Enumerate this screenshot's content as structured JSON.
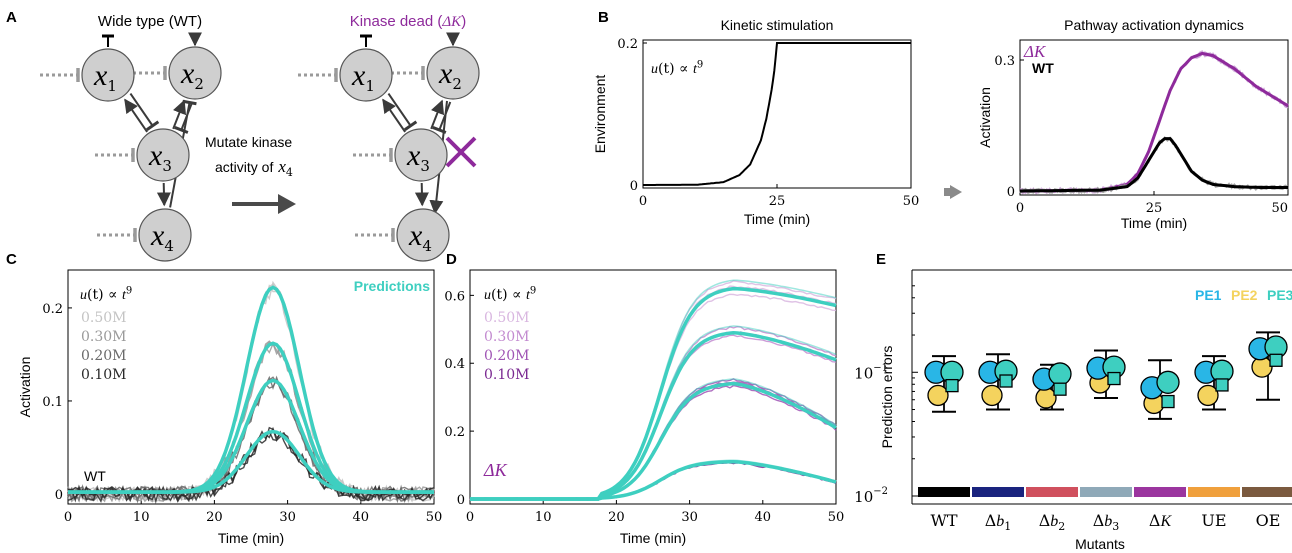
{
  "panels": {
    "A": {
      "letter": "A",
      "wt_title": "Wide type (WT)",
      "kd_title": "Kinase dead (",
      "kd_math": "ΔK",
      "kd_close": ")",
      "mutate_line1": "Mutate kinase",
      "mutate_line2": "activity of",
      "mutate_var": "x",
      "mutate_sub": "4",
      "nodes": [
        {
          "id": "x1",
          "var": "x",
          "sub": "1"
        },
        {
          "id": "x2",
          "var": "x",
          "sub": "2"
        },
        {
          "id": "x3",
          "var": "x",
          "sub": "3"
        },
        {
          "id": "x4",
          "var": "x",
          "sub": "4"
        }
      ],
      "colors": {
        "node": "#cfcfcf",
        "accent": "#8e2a9b",
        "edge": "#3a3a3a",
        "basal": "#9a9a9a"
      }
    },
    "B": {
      "letter": "B"
    },
    "C": {
      "letter": "C"
    },
    "D": {
      "letter": "D"
    },
    "E": {
      "letter": "E"
    }
  },
  "chart_data": [
    {
      "id": "B1",
      "type": "line",
      "title": "Kinetic stimulation",
      "xlabel": "Time (min)",
      "ylabel": "Environment",
      "xlim": [
        0,
        50
      ],
      "ylim": [
        0,
        0.2
      ],
      "xticks": [
        "0",
        "25",
        "50"
      ],
      "yticks": [
        "0",
        "0.2"
      ],
      "annotation": {
        "lhs": "u",
        "arg": "(t)",
        "rel": " ∝ ",
        "base": "t",
        "exp": "9"
      },
      "series": [
        {
          "color": "#000000",
          "x": [
            0,
            10,
            15,
            18,
            20,
            22,
            23,
            24,
            24.5,
            25,
            30,
            40,
            50
          ],
          "y": [
            0,
            0.0003,
            0.004,
            0.014,
            0.029,
            0.063,
            0.093,
            0.134,
            0.161,
            0.2,
            0.2,
            0.2,
            0.2
          ]
        }
      ]
    },
    {
      "id": "B2",
      "type": "line",
      "title": "Pathway activation dynamics",
      "xlabel": "Time (min)",
      "ylabel": "Activation",
      "xlim": [
        0,
        50
      ],
      "ylim": [
        0,
        0.3
      ],
      "xticks": [
        "0",
        "25",
        "50"
      ],
      "yticks": [
        "0",
        "0.3"
      ],
      "legend": {
        "placement": "top-left",
        "items": [
          {
            "label": "ΔK",
            "math": true,
            "color": "#8e2a9b"
          },
          {
            "label": "WT",
            "math": false,
            "color": "#000000"
          }
        ]
      },
      "series": [
        {
          "name": "ΔK",
          "color": "#8e2a9b",
          "x": [
            0,
            15,
            20,
            22,
            24,
            26,
            28,
            30,
            32,
            34,
            36,
            38,
            40,
            42,
            44,
            46,
            48,
            50
          ],
          "y": [
            0,
            0.002,
            0.015,
            0.04,
            0.09,
            0.16,
            0.23,
            0.28,
            0.305,
            0.315,
            0.31,
            0.295,
            0.28,
            0.26,
            0.24,
            0.225,
            0.21,
            0.195
          ]
        },
        {
          "name": "WT",
          "color": "#000000",
          "x": [
            0,
            15,
            20,
            22,
            24,
            25,
            26,
            27,
            28,
            29,
            30,
            31,
            32,
            34,
            36,
            40,
            45,
            50
          ],
          "y": [
            0,
            0.002,
            0.01,
            0.03,
            0.07,
            0.09,
            0.11,
            0.12,
            0.12,
            0.105,
            0.085,
            0.065,
            0.045,
            0.025,
            0.015,
            0.01,
            0.008,
            0.008
          ]
        }
      ]
    },
    {
      "id": "C",
      "type": "line",
      "xlabel": "Time (min)",
      "ylabel": "Activation",
      "xlim": [
        0,
        50
      ],
      "ylim": [
        0,
        0.23
      ],
      "xticks": [
        "0",
        "10",
        "20",
        "30",
        "40",
        "50"
      ],
      "yticks": [
        "0",
        "0.1",
        "0.2"
      ],
      "corner_label": "WT",
      "prediction_label": "Predictions",
      "prediction_color": "#3ecfc0",
      "legend_header": {
        "lhs": "u",
        "arg": "(t)",
        "rel": " ∝ ",
        "base": "t",
        "exp": "9"
      },
      "legend": [
        {
          "label": "0.50M",
          "color": "#c4c4c4"
        },
        {
          "label": "0.30M",
          "color": "#9a9a9a"
        },
        {
          "label": "0.20M",
          "color": "#6a6a6a"
        },
        {
          "label": "0.10M",
          "color": "#2a2a2a"
        }
      ],
      "series": [
        {
          "name": "0.50M",
          "peak": 0.22,
          "center": 28,
          "width": 3.6
        },
        {
          "name": "0.30M",
          "peak": 0.16,
          "center": 28,
          "width": 3.6
        },
        {
          "name": "0.20M",
          "peak": 0.12,
          "center": 28,
          "width": 3.6
        },
        {
          "name": "0.10M",
          "peak": 0.065,
          "center": 28,
          "width": 3.6
        }
      ]
    },
    {
      "id": "D",
      "type": "line",
      "xlabel": "Time (min)",
      "xlim": [
        0,
        50
      ],
      "ylim": [
        0,
        0.66
      ],
      "xticks": [
        "0",
        "10",
        "20",
        "30",
        "40",
        "50"
      ],
      "yticks": [
        "0",
        "0.2",
        "0.4",
        "0.6"
      ],
      "corner_label": "ΔK",
      "prediction_color": "#3ecfc0",
      "legend_header": {
        "lhs": "u",
        "arg": "(t)",
        "rel": " ∝ ",
        "base": "t",
        "exp": "9"
      },
      "legend": [
        {
          "label": "0.50M",
          "color": "#d9b7e0"
        },
        {
          "label": "0.30M",
          "color": "#c38bd0"
        },
        {
          "label": "0.20M",
          "color": "#a055b5"
        },
        {
          "label": "0.10M",
          "color": "#7b2a92"
        }
      ],
      "series": [
        {
          "name": "0.50M",
          "peak": 0.62,
          "end": 0.57
        },
        {
          "name": "0.30M",
          "peak": 0.49,
          "end": 0.41
        },
        {
          "name": "0.20M",
          "peak": 0.34,
          "end": 0.21
        },
        {
          "name": "0.10M",
          "peak": 0.11,
          "end": 0.05
        }
      ]
    },
    {
      "id": "E",
      "type": "scatter",
      "xlabel": "Mutants",
      "ylabel": "Prediction errors",
      "yscale": "log",
      "ylim": [
        0.01,
        0.6
      ],
      "yticks": [
        {
          "base": "10",
          "exp": "−1",
          "value": 0.1
        },
        {
          "base": "10",
          "exp": "−2",
          "value": 0.01
        }
      ],
      "categories": [
        {
          "label": "WT",
          "math": false,
          "color": "#000000"
        },
        {
          "label": "Δb",
          "sub": "1",
          "math": true,
          "color": "#1a237e"
        },
        {
          "label": "Δb",
          "sub": "2",
          "math": true,
          "color": "#d0505e"
        },
        {
          "label": "Δb",
          "sub": "3",
          "math": true,
          "color": "#8fa9b8"
        },
        {
          "label": "ΔK",
          "math": true,
          "color": "#9b359f"
        },
        {
          "label": "UE",
          "math": false,
          "color": "#f0a03c"
        },
        {
          "label": "OE",
          "math": false,
          "color": "#7b5a3f"
        }
      ],
      "legend": [
        {
          "label": "PE1",
          "color": "#29b6e6"
        },
        {
          "label": "PE2",
          "color": "#f4d35e"
        },
        {
          "label": "PE3",
          "color": "#3ecfc0"
        }
      ],
      "series": [
        {
          "name": "PE1",
          "marker": "circle",
          "values": [
            0.1,
            0.1,
            0.088,
            0.108,
            0.075,
            0.1,
            0.155
          ]
        },
        {
          "name": "PE2",
          "marker": "circle",
          "values": [
            0.065,
            0.065,
            0.062,
            0.082,
            0.056,
            0.065,
            0.11
          ]
        },
        {
          "name": "PE3",
          "marker": "circle",
          "values": [
            0.1,
            0.102,
            0.097,
            0.11,
            0.083,
            0.102,
            0.16
          ]
        },
        {
          "name": "PE3",
          "marker": "square",
          "values": [
            0.078,
            0.085,
            0.073,
            0.089,
            0.058,
            0.079,
            0.125
          ]
        }
      ],
      "whiskers": [
        [
          0.048,
          0.135
        ],
        [
          0.05,
          0.14
        ],
        [
          0.05,
          0.115
        ],
        [
          0.062,
          0.15
        ],
        [
          0.042,
          0.125
        ],
        [
          0.05,
          0.135
        ],
        [
          0.06,
          0.21
        ]
      ]
    }
  ]
}
